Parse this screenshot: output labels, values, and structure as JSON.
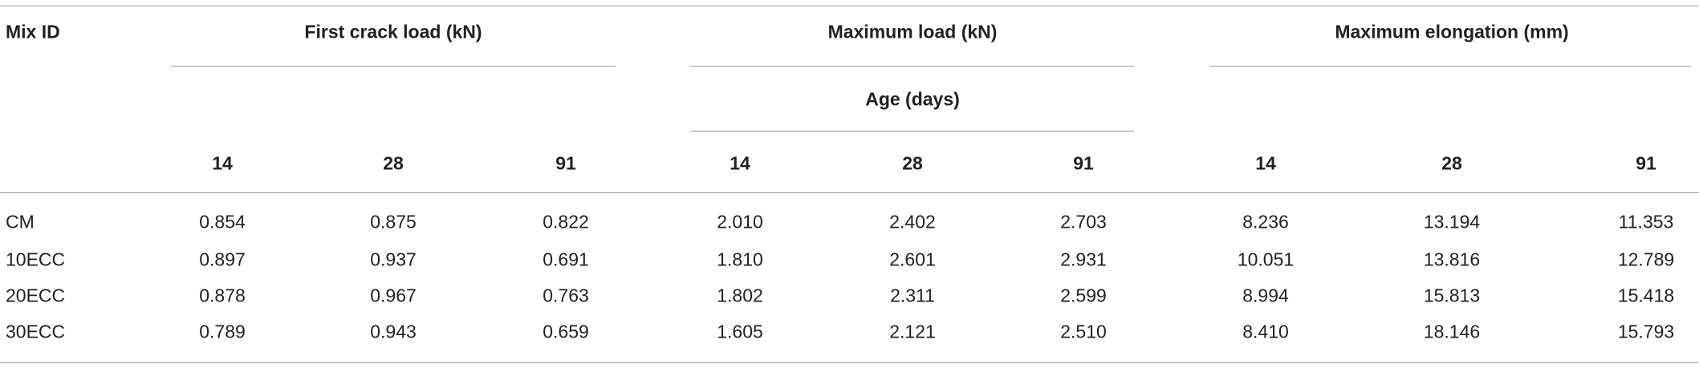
{
  "table": {
    "header": {
      "row_label": "Mix ID",
      "groups": [
        "First crack load (kN)",
        "Maximum load (kN)",
        "Maximum elongation (mm)"
      ],
      "age_label": "Age (days)",
      "subheaders": [
        "14",
        "28",
        "91",
        "14",
        "28",
        "91",
        "14",
        "28",
        "91"
      ]
    },
    "rows": [
      [
        "CM",
        "0.854",
        "0.875",
        "0.822",
        "2.010",
        "2.402",
        "2.703",
        "8.236",
        "13.194",
        "11.353"
      ],
      [
        "10ECC",
        "0.897",
        "0.937",
        "0.691",
        "1.810",
        "2.601",
        "2.931",
        "10.051",
        "13.816",
        "12.789"
      ],
      [
        "20ECC",
        "0.878",
        "0.967",
        "0.763",
        "1.802",
        "2.311",
        "2.599",
        "8.994",
        "15.813",
        "15.418"
      ],
      [
        "30ECC",
        "0.789",
        "0.943",
        "0.659",
        "1.605",
        "2.121",
        "2.510",
        "8.410",
        "18.146",
        "15.793"
      ]
    ]
  }
}
